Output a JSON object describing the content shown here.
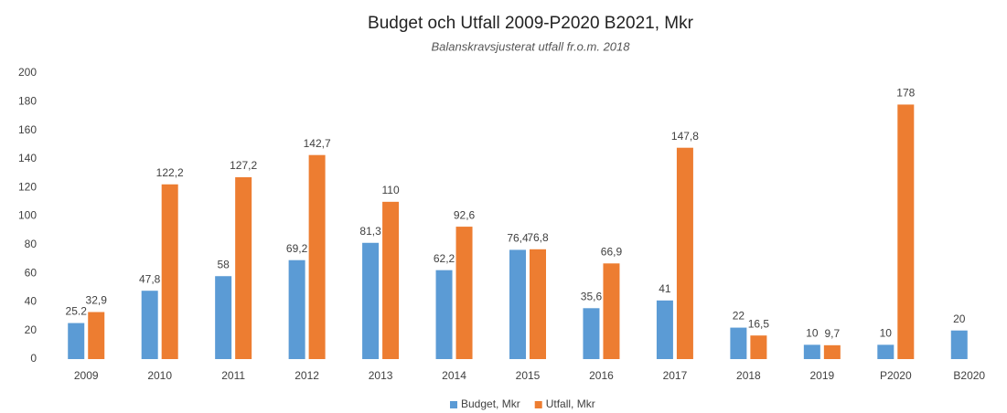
{
  "chart_data": {
    "type": "bar",
    "title": "Budget och Utfall 2009-P2020 B2021, Mkr",
    "subtitle": "Balanskravsjusterat utfall fr.o.m. 2018",
    "categories": [
      "2009",
      "2010",
      "2011",
      "2012",
      "2013",
      "2014",
      "2015",
      "2016",
      "2017",
      "2018",
      "2019",
      "P2020",
      "B2020"
    ],
    "series": [
      {
        "name": "Budget, Mkr",
        "color": "#5b9bd5",
        "values": [
          25.2,
          47.8,
          58,
          69.2,
          81.3,
          62.2,
          76.4,
          35.6,
          41,
          22,
          10,
          10,
          20
        ],
        "value_labels": [
          "25.2",
          "47,8",
          "58",
          "69,2",
          "81,3",
          "62,2",
          "76,4",
          "35,6",
          "41",
          "22",
          "10",
          "10",
          "20"
        ]
      },
      {
        "name": "Utfall, Mkr",
        "color": "#ed7d31",
        "values": [
          32.9,
          122.2,
          127.2,
          142.7,
          110,
          92.6,
          76.8,
          66.9,
          147.8,
          16.5,
          9.7,
          178,
          null
        ],
        "value_labels": [
          "32,9",
          "122,2",
          "127,2",
          "142,7",
          "110",
          "92,6",
          "76,8",
          "66,9",
          "147,8",
          "16,5",
          "9,7",
          "178",
          null
        ]
      }
    ],
    "ylim": [
      0,
      200
    ],
    "yticks": [
      0,
      20,
      40,
      60,
      80,
      100,
      120,
      140,
      160,
      180,
      200
    ],
    "grid": false,
    "legend": "bottom"
  }
}
